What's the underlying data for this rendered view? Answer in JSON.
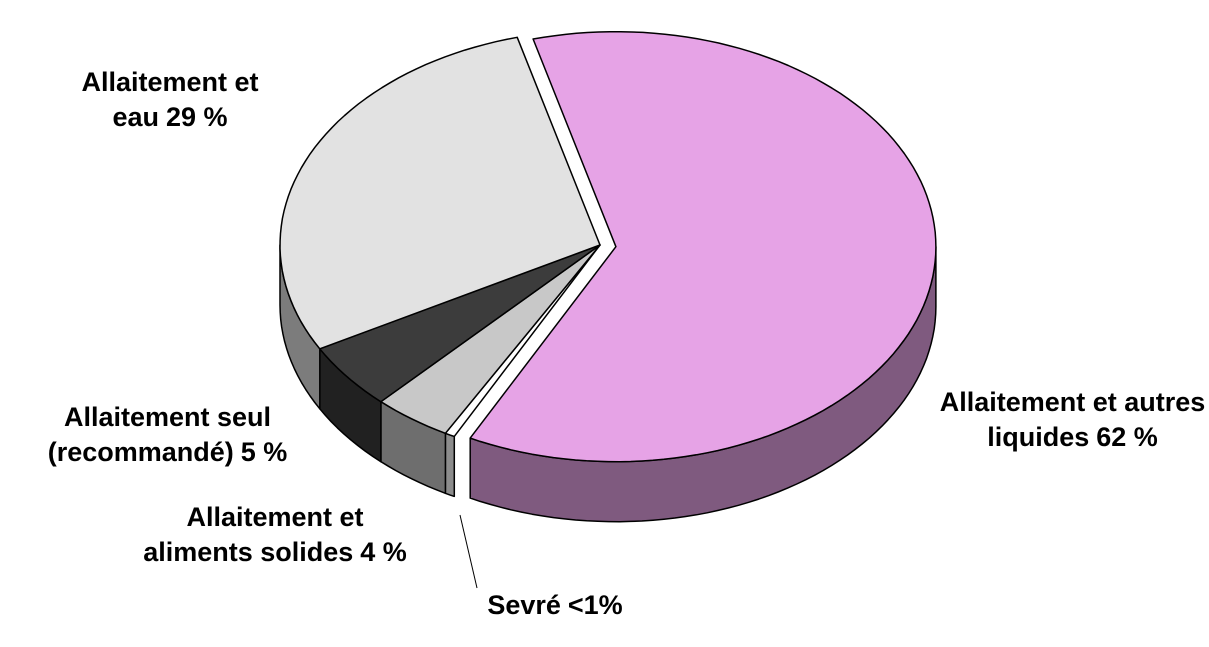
{
  "chart_data": {
    "type": "pie",
    "categories": [
      "Allaitement et autres liquides",
      "Sevré",
      "Allaitement et aliments solides",
      "Allaitement seul (recommandé)",
      "Allaitement et eau"
    ],
    "values": [
      62,
      0.5,
      4,
      5,
      29
    ],
    "value_labels": [
      "62 %",
      "<1%",
      "4 %",
      "5 %",
      "29 %"
    ],
    "colors": [
      "#e6a3e6",
      "#ffffff",
      "#c8c8c8",
      "#3c3c3c",
      "#e2e2e2"
    ]
  }
}
